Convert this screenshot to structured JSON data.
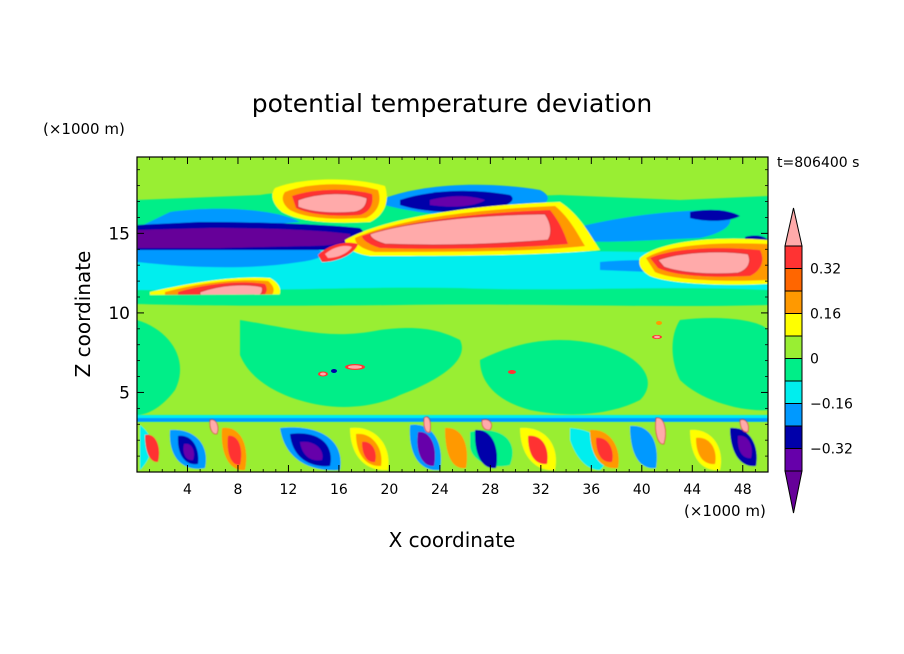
{
  "chart_data": {
    "type": "heatmap",
    "title": "potential temperature deviation",
    "xlabel": "X coordinate",
    "ylabel": "Z coordinate",
    "x_unit": "(×1000 m)",
    "y_unit": "(×1000 m)",
    "time_label": "t=806400 s",
    "xlim": [
      0,
      50
    ],
    "ylim": [
      0,
      19.8
    ],
    "x_ticks": [
      "4",
      "8",
      "12",
      "16",
      "20",
      "24",
      "28",
      "32",
      "36",
      "40",
      "44",
      "48"
    ],
    "y_ticks": [
      "5",
      "10",
      "15"
    ],
    "colorbar": {
      "levels": [
        -0.4,
        -0.32,
        -0.24,
        -0.16,
        -0.08,
        0,
        0.08,
        0.16,
        0.24,
        0.32,
        0.4
      ],
      "tick_labels": [
        "0.32",
        "0.16",
        "0",
        "−0.16",
        "−0.32"
      ],
      "colors": [
        "#ffaaaa",
        "#ff3333",
        "#ff6600",
        "#ff9900",
        "#ffff00",
        "#99ee33",
        "#00ee88",
        "#00eeee",
        "#0099ff",
        "#0000aa",
        "#6600aa",
        "#660099"
      ]
    },
    "field_regions": [
      {
        "name": "upper-negative-band-west",
        "x": [
          0,
          17
        ],
        "z": [
          14.2,
          15.3
        ],
        "value": -0.4
      },
      {
        "name": "upper-positive-central",
        "x": [
          15,
          36
        ],
        "z": [
          14.3,
          16.2
        ],
        "value": 0.4
      },
      {
        "name": "upper-positive-northwest",
        "x": [
          10,
          20
        ],
        "z": [
          16.0,
          17.5
        ],
        "value": 0.4
      },
      {
        "name": "upper-negative-north",
        "x": [
          17,
          28
        ],
        "z": [
          16.2,
          17.8
        ],
        "value": -0.32
      },
      {
        "name": "positive-east",
        "x": [
          40,
          49
        ],
        "z": [
          12.4,
          14.2
        ],
        "value": 0.4
      },
      {
        "name": "positive-west-11km",
        "x": [
          3,
          11
        ],
        "z": [
          10.8,
          12.0
        ],
        "value": 0.4
      },
      {
        "name": "negative-band-13km",
        "x": [
          0,
          50
        ],
        "z": [
          11.8,
          13.8
        ],
        "value": -0.16
      },
      {
        "name": "boundary-layer",
        "x": [
          0,
          50
        ],
        "z": [
          0,
          3.5
        ],
        "value": "mixed"
      }
    ]
  }
}
